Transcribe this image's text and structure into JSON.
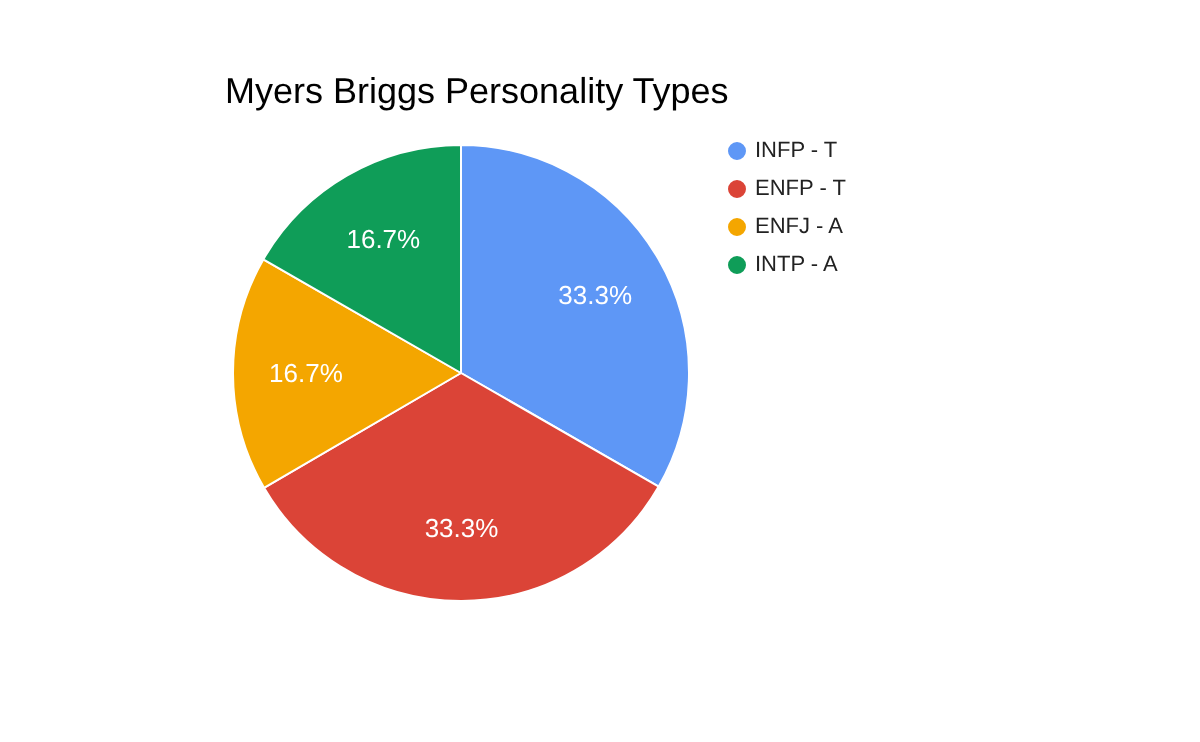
{
  "chart_data": {
    "type": "pie",
    "title": "Myers Briggs Personality Types",
    "categories": [
      "INFP - T",
      "ENFP - T",
      "ENFJ - A",
      "INTP - A"
    ],
    "values": [
      33.3,
      33.3,
      16.7,
      16.7
    ],
    "colors": [
      "#5e97f6",
      "#db4437",
      "#f4a600",
      "#0f9d58"
    ],
    "value_labels": [
      "33.3%",
      "33.3%",
      "16.7%",
      "16.7%"
    ],
    "legend": "right"
  }
}
